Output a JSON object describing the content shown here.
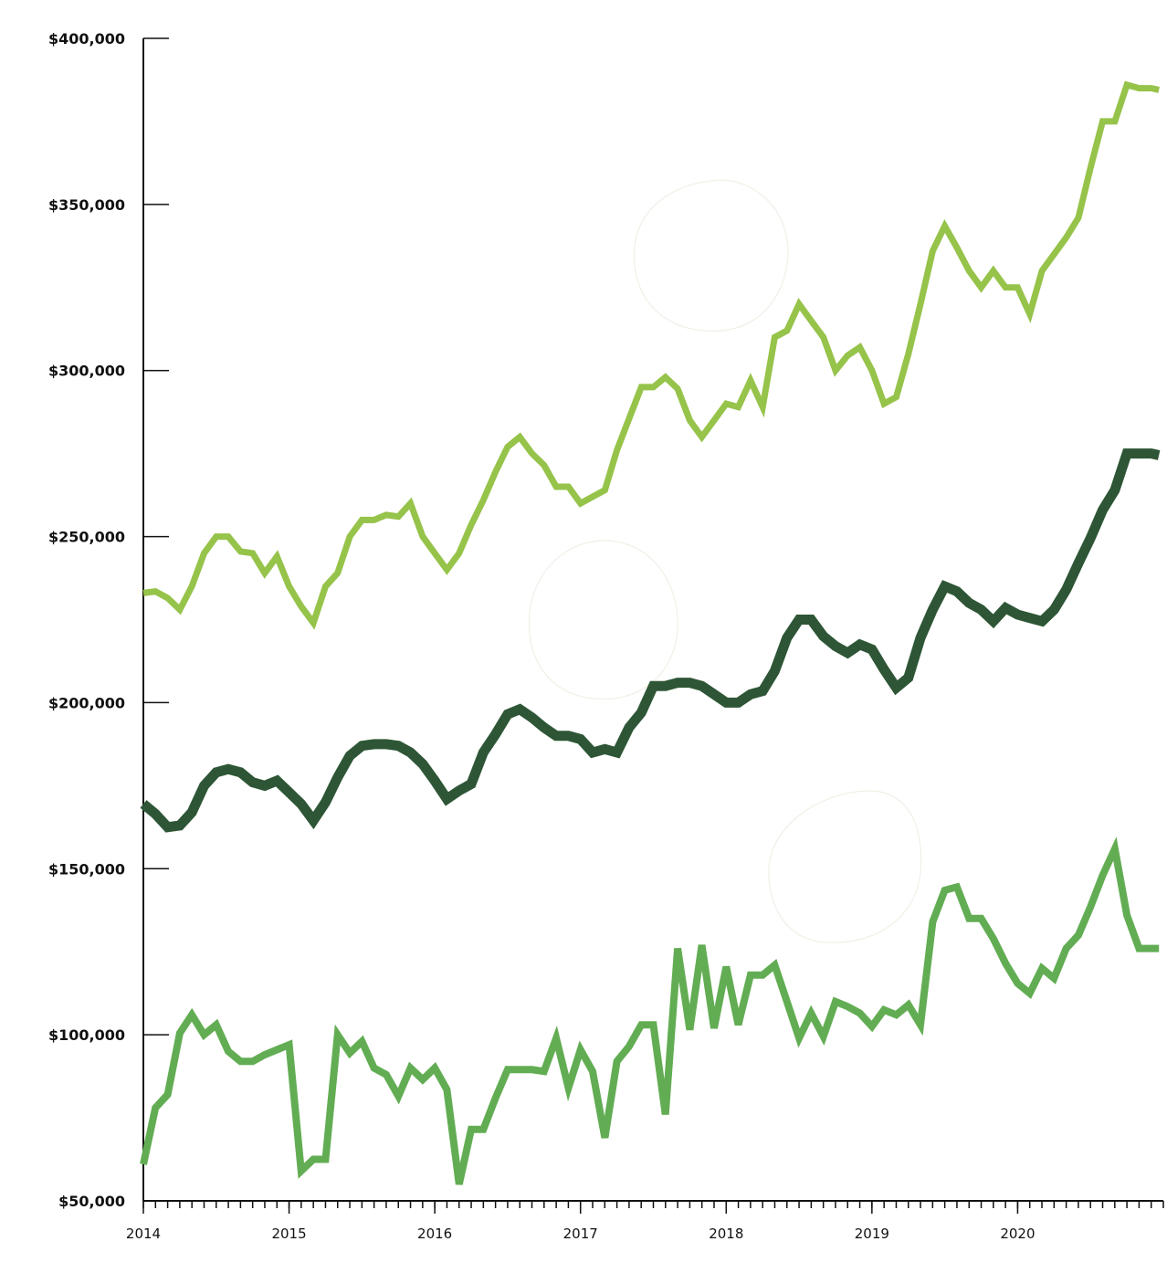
{
  "chart_data": {
    "type": "line",
    "title": "",
    "xlabel": "",
    "ylabel": "",
    "ylim": [
      50000,
      400000
    ],
    "xlim": [
      2014.0,
      2021.0
    ],
    "y_ticks": [
      50000,
      100000,
      150000,
      200000,
      250000,
      300000,
      350000,
      400000
    ],
    "y_tick_labels": [
      "$50,000",
      "$100,000",
      "$150,000",
      "$200,000",
      "$250,000",
      "$300,000",
      "$350,000",
      "$400,000"
    ],
    "x_ticks": [
      2014,
      2015,
      2016,
      2017,
      2018,
      2019,
      2020
    ],
    "x_tick_labels": [
      "2014",
      "2015",
      "2016",
      "2017",
      "2018",
      "2019",
      "2020"
    ],
    "minor_ticks_per_year": 12,
    "grid": false,
    "legend": "none",
    "series": [
      {
        "color": "#96c34a",
        "width": 7,
        "x": [
          2014.0,
          2014.083,
          2014.167,
          2014.25,
          2014.333,
          2014.417,
          2014.5,
          2014.583,
          2014.667,
          2014.75,
          2014.833,
          2014.917,
          2015.0,
          2015.083,
          2015.167,
          2015.25,
          2015.333,
          2015.417,
          2015.5,
          2015.583,
          2015.667,
          2015.75,
          2015.833,
          2015.917,
          2016.0,
          2016.083,
          2016.167,
          2016.25,
          2016.333,
          2016.417,
          2016.5,
          2016.583,
          2016.667,
          2016.75,
          2016.833,
          2016.917,
          2017.0,
          2017.083,
          2017.167,
          2017.25,
          2017.333,
          2017.417,
          2017.5,
          2017.583,
          2017.667,
          2017.75,
          2017.833,
          2017.917,
          2018.0,
          2018.083,
          2018.167,
          2018.25,
          2018.333,
          2018.417,
          2018.5,
          2018.583,
          2018.667,
          2018.75,
          2018.833,
          2018.917,
          2019.0,
          2019.083,
          2019.167,
          2019.25,
          2019.333,
          2019.417,
          2019.5,
          2019.583,
          2019.667,
          2019.75,
          2019.833,
          2019.917,
          2020.0,
          2020.083,
          2020.167,
          2020.25,
          2020.333,
          2020.417,
          2020.5,
          2020.583,
          2020.667,
          2020.75,
          2020.833,
          2020.917,
          2020.97
        ],
        "values": [
          233000,
          233500,
          231500,
          228000,
          235000,
          245000,
          250000,
          250000,
          245500,
          245000,
          239000,
          244000,
          235000,
          229000,
          224000,
          235000,
          239000,
          250000,
          255000,
          255000,
          256500,
          256000,
          260000,
          250000,
          245000,
          240000,
          245000,
          253500,
          261000,
          269500,
          277000,
          280000,
          275000,
          271500,
          265000,
          265000,
          260000,
          262000,
          264000,
          276000,
          285500,
          295000,
          295000,
          298000,
          294500,
          285000,
          280000,
          285000,
          290000,
          289000,
          297000,
          289000,
          310000,
          312000,
          320000,
          315000,
          310000,
          300000,
          304500,
          307000,
          300000,
          290000,
          292000,
          305000,
          320000,
          336000,
          343500,
          337000,
          330000,
          325000,
          330000,
          325000,
          325000,
          317000,
          330000,
          335000,
          340000,
          346000,
          361000,
          375000,
          375000,
          386000,
          385000,
          385000,
          384500
        ]
      },
      {
        "color": "#2e5636",
        "width": 11,
        "x": [
          2014.0,
          2014.083,
          2014.167,
          2014.25,
          2014.333,
          2014.417,
          2014.5,
          2014.583,
          2014.667,
          2014.75,
          2014.833,
          2014.917,
          2015.0,
          2015.083,
          2015.167,
          2015.25,
          2015.333,
          2015.417,
          2015.5,
          2015.583,
          2015.667,
          2015.75,
          2015.833,
          2015.917,
          2016.0,
          2016.083,
          2016.167,
          2016.25,
          2016.333,
          2016.417,
          2016.5,
          2016.583,
          2016.667,
          2016.75,
          2016.833,
          2016.917,
          2017.0,
          2017.083,
          2017.167,
          2017.25,
          2017.333,
          2017.417,
          2017.5,
          2017.583,
          2017.667,
          2017.75,
          2017.833,
          2017.917,
          2018.0,
          2018.083,
          2018.167,
          2018.25,
          2018.333,
          2018.417,
          2018.5,
          2018.583,
          2018.667,
          2018.75,
          2018.833,
          2018.917,
          2019.0,
          2019.083,
          2019.167,
          2019.25,
          2019.333,
          2019.417,
          2019.5,
          2019.583,
          2019.667,
          2019.75,
          2019.833,
          2019.917,
          2020.0,
          2020.083,
          2020.167,
          2020.25,
          2020.333,
          2020.417,
          2020.5,
          2020.583,
          2020.667,
          2020.75,
          2020.833,
          2020.917,
          2020.97
        ],
        "values": [
          169500,
          166500,
          162500,
          163000,
          167000,
          175000,
          179000,
          180000,
          179000,
          176000,
          175000,
          176500,
          173000,
          169500,
          164500,
          170000,
          177500,
          184000,
          187000,
          187500,
          187500,
          187000,
          185000,
          181500,
          176500,
          171000,
          173500,
          175500,
          185000,
          190500,
          196500,
          198000,
          195500,
          192500,
          190000,
          190000,
          189000,
          185000,
          186000,
          185000,
          192500,
          197000,
          205000,
          205000,
          206000,
          206000,
          205000,
          202500,
          200000,
          200000,
          202500,
          203500,
          209500,
          219500,
          225000,
          225000,
          220000,
          217000,
          215000,
          217500,
          216000,
          210000,
          204500,
          207500,
          219500,
          228000,
          235000,
          233500,
          230000,
          228000,
          224500,
          228500,
          226500,
          225500,
          224500,
          228000,
          234000,
          242000,
          249500,
          258000,
          264000,
          275000,
          275000,
          275000,
          274500
        ]
      },
      {
        "color": "#62ad53",
        "width": 8,
        "x": [
          2014.0,
          2014.083,
          2014.167,
          2014.25,
          2014.333,
          2014.417,
          2014.5,
          2014.583,
          2014.667,
          2014.75,
          2014.833,
          2014.917,
          2015.0,
          2015.083,
          2015.167,
          2015.25,
          2015.333,
          2015.417,
          2015.5,
          2015.583,
          2015.667,
          2015.75,
          2015.833,
          2015.917,
          2016.0,
          2016.083,
          2016.167,
          2016.25,
          2016.333,
          2016.417,
          2016.5,
          2016.583,
          2016.667,
          2016.75,
          2016.833,
          2016.917,
          2017.0,
          2017.083,
          2017.167,
          2017.25,
          2017.333,
          2017.417,
          2017.5,
          2017.583,
          2017.667,
          2017.75,
          2017.833,
          2017.917,
          2018.0,
          2018.083,
          2018.167,
          2018.25,
          2018.333,
          2018.417,
          2018.5,
          2018.583,
          2018.667,
          2018.75,
          2018.833,
          2018.917,
          2019.0,
          2019.083,
          2019.167,
          2019.25,
          2019.333,
          2019.417,
          2019.5,
          2019.583,
          2019.667,
          2019.75,
          2019.833,
          2019.917,
          2020.0,
          2020.083,
          2020.167,
          2020.25,
          2020.333,
          2020.417,
          2020.5,
          2020.583,
          2020.667,
          2020.75,
          2020.833,
          2020.917,
          2020.97
        ],
        "values": [
          61000,
          78000,
          82000,
          100500,
          106000,
          100000,
          103000,
          95000,
          92000,
          92000,
          94000,
          95500,
          97000,
          59000,
          62500,
          62500,
          100000,
          94500,
          98000,
          90000,
          88000,
          81500,
          90000,
          86500,
          90000,
          83500,
          55000,
          71500,
          71500,
          81000,
          89500,
          89500,
          89500,
          89000,
          99000,
          84000,
          95500,
          89000,
          69000,
          92000,
          96500,
          103000,
          103000,
          76000,
          126000,
          101500,
          127000,
          102000,
          120500,
          103000,
          118000,
          118000,
          121000,
          110000,
          99000,
          106500,
          99500,
          110000,
          108500,
          106500,
          102500,
          107500,
          106000,
          109000,
          103000,
          134000,
          143500,
          144500,
          135000,
          135000,
          129000,
          121500,
          115500,
          112500,
          120000,
          117000,
          126000,
          130000,
          138500,
          148000,
          156000,
          136000,
          126000,
          126000,
          126000
        ]
      }
    ]
  }
}
